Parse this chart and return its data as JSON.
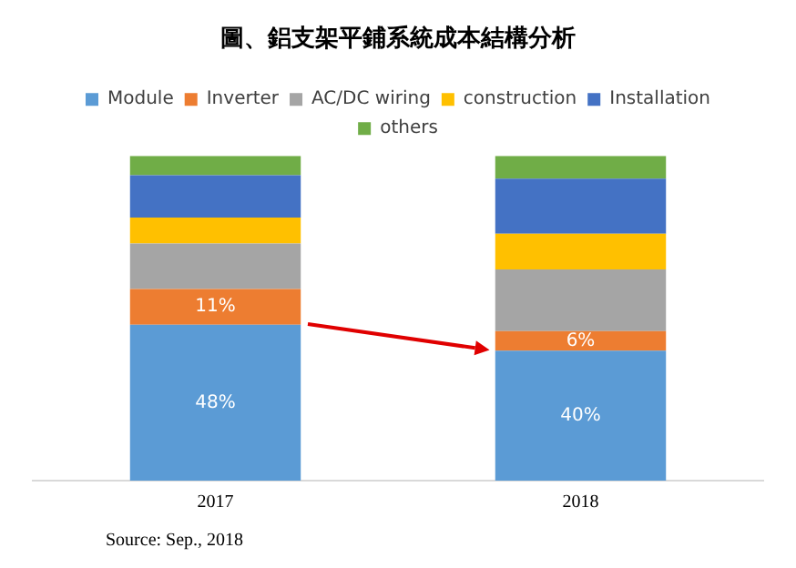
{
  "chart_data": {
    "type": "bar",
    "title": "圖、鋁支架平鋪系統成本結構分析",
    "categories": [
      "2017",
      "2018"
    ],
    "stacked": true,
    "ylim": [
      0,
      100
    ],
    "tick_labels": "x",
    "grid": false,
    "legend": "top",
    "series": [
      {
        "name": "Module",
        "color": "#5b9bd5",
        "values": [
          48,
          40
        ],
        "value_labels": [
          "48%",
          "40%"
        ]
      },
      {
        "name": "Inverter",
        "color": "#ed7d31",
        "values": [
          11,
          6
        ],
        "value_labels": [
          "11%",
          "6%"
        ]
      },
      {
        "name": "AC/DC wiring",
        "color": "#a5a5a5",
        "values": [
          14,
          19
        ]
      },
      {
        "name": "construction",
        "color": "#ffc000",
        "values": [
          8,
          11
        ]
      },
      {
        "name": "Installation",
        "color": "#4472c4",
        "values": [
          13,
          17
        ]
      },
      {
        "name": "others",
        "color": "#70ad47",
        "values": [
          6,
          7
        ]
      }
    ],
    "annotations": [
      "Source: Sep., 2018"
    ]
  }
}
